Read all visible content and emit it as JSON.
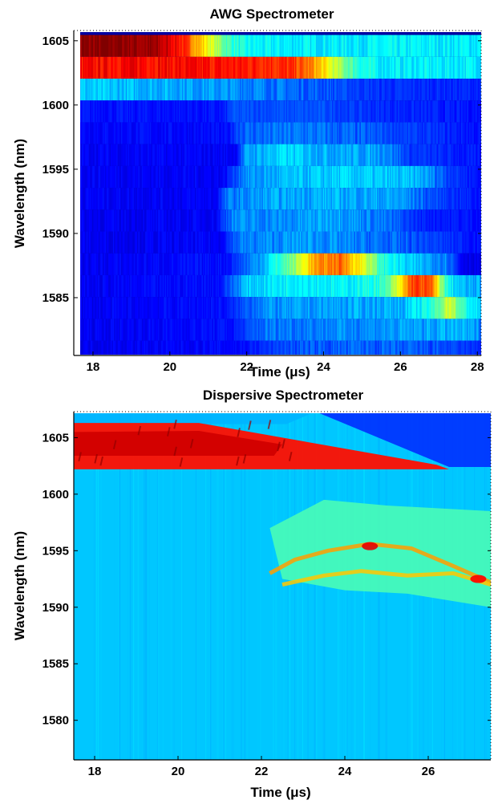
{
  "chart_data": [
    {
      "type": "heatmap",
      "title": "AWG Spectrometer",
      "xlabel": "Time (μs)",
      "ylabel": "Wavelength (nm)",
      "xlim": [
        17.5,
        28.1
      ],
      "ylim": [
        1580.5,
        1605.8
      ],
      "xticks": [
        18,
        20,
        22,
        24,
        26,
        28
      ],
      "yticks": [
        1585,
        1590,
        1595,
        1600,
        1605
      ],
      "colormap": "jet",
      "grid": false,
      "channels": [
        {
          "wavelength": 1604.6,
          "bands": [
            [
              17.5,
              0.97
            ],
            [
              18.6,
              1.0
            ],
            [
              19.6,
              0.96
            ],
            [
              20.2,
              0.88
            ],
            [
              20.7,
              0.72
            ],
            [
              21.1,
              0.58
            ],
            [
              21.5,
              0.45
            ],
            [
              21.9,
              0.38
            ],
            [
              22.5,
              0.36
            ],
            [
              28.1,
              0.36
            ]
          ]
        },
        {
          "wavelength": 1602.9,
          "bands": [
            [
              17.5,
              0.86
            ],
            [
              19.0,
              0.88
            ],
            [
              21.0,
              0.86
            ],
            [
              22.5,
              0.85
            ],
            [
              23.2,
              0.82
            ],
            [
              23.7,
              0.74
            ],
            [
              24.1,
              0.62
            ],
            [
              24.6,
              0.48
            ],
            [
              25.0,
              0.4
            ],
            [
              25.5,
              0.36
            ],
            [
              28.1,
              0.36
            ]
          ]
        },
        {
          "wavelength": 1601.2,
          "bands": [
            [
              17.5,
              0.32
            ],
            [
              20.0,
              0.3
            ],
            [
              22.0,
              0.26
            ],
            [
              24.0,
              0.21
            ],
            [
              25.5,
              0.17
            ],
            [
              28.1,
              0.16
            ]
          ]
        },
        {
          "wavelength": 1599.5,
          "bands": [
            [
              17.5,
              0.14
            ],
            [
              21.4,
              0.14
            ],
            [
              21.6,
              0.2
            ],
            [
              24.0,
              0.2
            ],
            [
              25.2,
              0.17
            ],
            [
              28.1,
              0.14
            ]
          ]
        },
        {
          "wavelength": 1597.8,
          "bands": [
            [
              17.5,
              0.13
            ],
            [
              21.5,
              0.13
            ],
            [
              21.8,
              0.22
            ],
            [
              23.5,
              0.24
            ],
            [
              25.5,
              0.2
            ],
            [
              28.1,
              0.14
            ]
          ]
        },
        {
          "wavelength": 1596.1,
          "bands": [
            [
              17.5,
              0.12
            ],
            [
              21.7,
              0.12
            ],
            [
              22.0,
              0.28
            ],
            [
              23.0,
              0.34
            ],
            [
              24.0,
              0.3
            ],
            [
              25.6,
              0.28
            ],
            [
              26.2,
              0.18
            ],
            [
              28.1,
              0.14
            ]
          ]
        },
        {
          "wavelength": 1594.4,
          "bands": [
            [
              17.5,
              0.12
            ],
            [
              21.4,
              0.12
            ],
            [
              21.9,
              0.26
            ],
            [
              23.0,
              0.3
            ],
            [
              24.5,
              0.33
            ],
            [
              26.5,
              0.3
            ],
            [
              27.4,
              0.18
            ],
            [
              28.1,
              0.14
            ]
          ]
        },
        {
          "wavelength": 1592.7,
          "bands": [
            [
              17.5,
              0.12
            ],
            [
              21.2,
              0.12
            ],
            [
              21.5,
              0.24
            ],
            [
              22.5,
              0.28
            ],
            [
              24.0,
              0.3
            ],
            [
              26.0,
              0.28
            ],
            [
              26.8,
              0.2
            ],
            [
              28.1,
              0.14
            ]
          ]
        },
        {
          "wavelength": 1591.0,
          "bands": [
            [
              17.5,
              0.11
            ],
            [
              21.2,
              0.12
            ],
            [
              21.6,
              0.26
            ],
            [
              23.0,
              0.26
            ],
            [
              24.3,
              0.3
            ],
            [
              25.5,
              0.24
            ],
            [
              26.5,
              0.16
            ],
            [
              28.1,
              0.14
            ]
          ]
        },
        {
          "wavelength": 1589.3,
          "bands": [
            [
              17.5,
              0.11
            ],
            [
              21.3,
              0.12
            ],
            [
              21.8,
              0.24
            ],
            [
              23.5,
              0.28
            ],
            [
              25.0,
              0.24
            ],
            [
              26.5,
              0.2
            ],
            [
              28.1,
              0.14
            ]
          ]
        },
        {
          "wavelength": 1587.6,
          "bands": [
            [
              17.5,
              0.11
            ],
            [
              21.5,
              0.14
            ],
            [
              22.3,
              0.28
            ],
            [
              23.2,
              0.5
            ],
            [
              23.7,
              0.7
            ],
            [
              24.4,
              0.78
            ],
            [
              25.0,
              0.62
            ],
            [
              25.5,
              0.42
            ],
            [
              26.2,
              0.32
            ],
            [
              27.2,
              0.26
            ],
            [
              27.6,
              0.12
            ],
            [
              28.1,
              0.1
            ]
          ]
        },
        {
          "wavelength": 1585.9,
          "bands": [
            [
              17.5,
              0.11
            ],
            [
              21.3,
              0.14
            ],
            [
              22.0,
              0.32
            ],
            [
              23.2,
              0.38
            ],
            [
              24.5,
              0.36
            ],
            [
              25.6,
              0.42
            ],
            [
              26.0,
              0.62
            ],
            [
              26.3,
              0.82
            ],
            [
              26.8,
              0.78
            ],
            [
              27.2,
              0.4
            ],
            [
              27.6,
              0.3
            ],
            [
              28.1,
              0.28
            ]
          ]
        },
        {
          "wavelength": 1584.2,
          "bands": [
            [
              17.5,
              0.11
            ],
            [
              21.5,
              0.14
            ],
            [
              22.3,
              0.26
            ],
            [
              24.0,
              0.28
            ],
            [
              26.0,
              0.3
            ],
            [
              26.8,
              0.4
            ],
            [
              27.3,
              0.6
            ],
            [
              27.6,
              0.42
            ],
            [
              28.1,
              0.32
            ]
          ]
        },
        {
          "wavelength": 1582.5,
          "bands": [
            [
              17.5,
              0.11
            ],
            [
              21.6,
              0.14
            ],
            [
              22.5,
              0.24
            ],
            [
              24.5,
              0.26
            ],
            [
              26.5,
              0.28
            ],
            [
              27.5,
              0.3
            ],
            [
              28.1,
              0.26
            ]
          ]
        },
        {
          "wavelength": 1580.8,
          "bands": [
            [
              17.5,
              0.11
            ],
            [
              21.8,
              0.13
            ],
            [
              23.0,
              0.2
            ],
            [
              25.0,
              0.22
            ],
            [
              27.0,
              0.2
            ],
            [
              28.1,
              0.16
            ]
          ]
        }
      ]
    },
    {
      "type": "heatmap",
      "title": "Dispersive Spectrometer",
      "xlabel": "Time (μs)",
      "ylabel": "Wavelength (nm)",
      "xlim": [
        17.5,
        27.5
      ],
      "ylim": [
        1576.5,
        1607.3
      ],
      "xticks": [
        18,
        20,
        22,
        24,
        26
      ],
      "yticks": [
        1580,
        1585,
        1590,
        1595,
        1600,
        1605
      ],
      "colormap": "jet",
      "grid": false,
      "background_level": 0.32,
      "features": [
        {
          "name": "saturated-band",
          "polygon": [
            [
              17.5,
              1606.2
            ],
            [
              22.6,
              1606.2
            ],
            [
              23.3,
              1607.3
            ],
            [
              17.5,
              1607.3
            ]
          ],
          "level": 0.3
        },
        {
          "name": "main-line",
          "polygon": [
            [
              17.5,
              1606.3
            ],
            [
              20.5,
              1606.3
            ],
            [
              26.2,
              1602.6
            ],
            [
              26.5,
              1602.2
            ],
            [
              17.5,
              1602.2
            ]
          ],
          "level": 0.86
        },
        {
          "name": "main-line-core",
          "polygon": [
            [
              17.5,
              1605.5
            ],
            [
              20.5,
              1605.6
            ],
            [
              22.5,
              1604.4
            ],
            [
              22.3,
              1603.4
            ],
            [
              17.5,
              1603.4
            ]
          ],
          "level": 0.92
        },
        {
          "name": "upper-dark-region",
          "polygon": [
            [
              23.3,
              1607.3
            ],
            [
              27.5,
              1607.3
            ],
            [
              27.5,
              1602.4
            ],
            [
              26.5,
              1602.4
            ]
          ],
          "level": 0.16
        },
        {
          "name": "emission-cloud",
          "polygon": [
            [
              22.2,
              1597.0
            ],
            [
              23.5,
              1599.5
            ],
            [
              25.0,
              1599.0
            ],
            [
              27.5,
              1598.5
            ],
            [
              27.5,
              1590.0
            ],
            [
              25.5,
              1591.2
            ],
            [
              24.0,
              1591.5
            ],
            [
              22.5,
              1592.5
            ]
          ],
          "level": 0.45
        },
        {
          "name": "emission-lines",
          "polyline": [
            [
              22.2,
              1593.0
            ],
            [
              22.8,
              1594.2
            ],
            [
              23.6,
              1595.0
            ],
            [
              24.6,
              1595.6
            ],
            [
              25.6,
              1595.2
            ],
            [
              26.5,
              1593.8
            ],
            [
              27.5,
              1592.2
            ]
          ],
          "level": 0.72
        },
        {
          "name": "emission-lines-2",
          "polyline": [
            [
              22.5,
              1592.0
            ],
            [
              23.5,
              1592.8
            ],
            [
              24.4,
              1593.2
            ],
            [
              25.5,
              1592.8
            ],
            [
              26.6,
              1593.0
            ],
            [
              27.5,
              1592.0
            ]
          ],
          "level": 0.68
        },
        {
          "name": "hotspot-1",
          "point": [
            24.6,
            1595.4
          ],
          "level": 0.9
        },
        {
          "name": "hotspot-2",
          "point": [
            27.2,
            1592.5
          ],
          "level": 0.88
        }
      ]
    }
  ]
}
